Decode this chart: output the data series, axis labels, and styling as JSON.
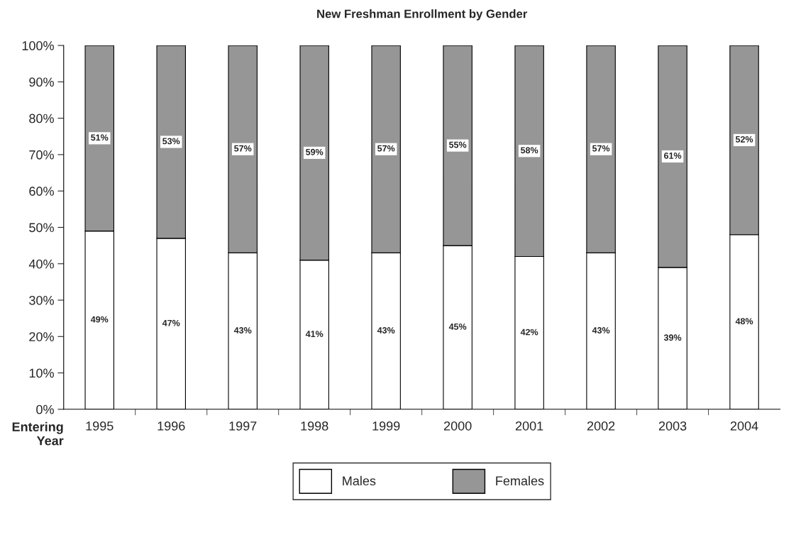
{
  "chart_data": {
    "type": "bar",
    "title": "New Freshman Enrollment by Gender",
    "xlabel": "Entering\nYear",
    "stacked": true,
    "legend": "bottom",
    "grid": false,
    "categories": [
      "1995",
      "1996",
      "1997",
      "1998",
      "1999",
      "2000",
      "2001",
      "2002",
      "2003",
      "2004"
    ],
    "series": [
      {
        "name": "Males",
        "color": "#ffffff",
        "values": [
          49,
          47,
          43,
          41,
          43,
          45,
          42,
          43,
          39,
          48
        ],
        "value_labels": [
          "49%",
          "47%",
          "43%",
          "41%",
          "43%",
          "45%",
          "42%",
          "43%",
          "39%",
          "48%"
        ]
      },
      {
        "name": "Females",
        "color": "#969696",
        "values": [
          51,
          53,
          57,
          59,
          57,
          55,
          58,
          57,
          61,
          52
        ],
        "value_labels": [
          "51%",
          "53%",
          "57%",
          "59%",
          "57%",
          "55%",
          "58%",
          "57%",
          "61%",
          "52%"
        ]
      }
    ],
    "ylim": [
      0,
      100
    ],
    "yticks": [
      {
        "value": 0,
        "label": "0%"
      },
      {
        "value": 10,
        "label": "10%"
      },
      {
        "value": 20,
        "label": "20%"
      },
      {
        "value": 30,
        "label": "30%"
      },
      {
        "value": 40,
        "label": "40%"
      },
      {
        "value": 50,
        "label": "50%"
      },
      {
        "value": 60,
        "label": "60%"
      },
      {
        "value": 70,
        "label": "70%"
      },
      {
        "value": 80,
        "label": "80%"
      },
      {
        "value": 90,
        "label": "90%"
      },
      {
        "value": 100,
        "label": "100%"
      }
    ]
  }
}
